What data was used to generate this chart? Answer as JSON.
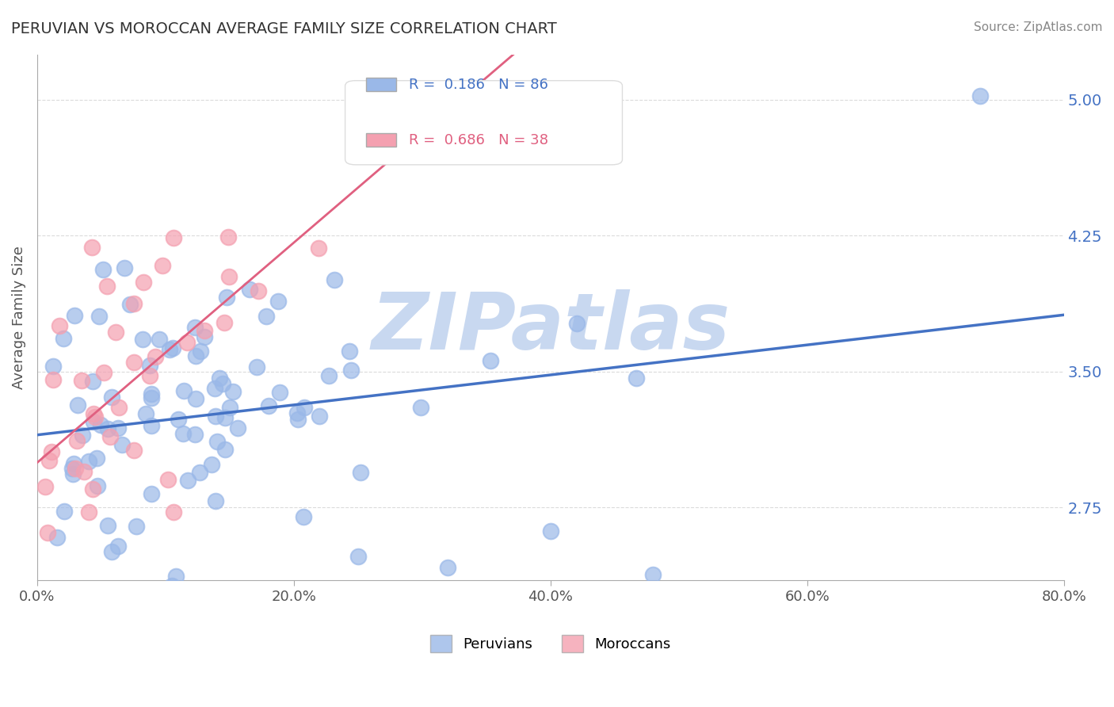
{
  "title": "PERUVIAN VS MOROCCAN AVERAGE FAMILY SIZE CORRELATION CHART",
  "source": "Source: ZipAtlas.com",
  "ylabel": "Average Family Size",
  "xlabel": "",
  "xlim": [
    0.0,
    0.8
  ],
  "ylim": [
    2.35,
    5.25
  ],
  "yticks": [
    2.75,
    3.5,
    4.25,
    5.0
  ],
  "xticks": [
    0.0,
    0.2,
    0.4,
    0.6,
    0.8
  ],
  "xtick_labels": [
    "0.0%",
    "20.0%",
    "40.0%",
    "60.0%",
    "80.0%"
  ],
  "peruvian_color": "#9ab8e8",
  "moroccan_color": "#f4a0b0",
  "peruvian_line_color": "#4472c4",
  "moroccan_line_color": "#e06080",
  "R_peruvian": 0.186,
  "N_peruvian": 86,
  "R_moroccan": 0.686,
  "N_moroccan": 38,
  "watermark": "ZIPatlas",
  "watermark_color": "#c8d8f0",
  "legend_label_peruvian": "Peruvians",
  "legend_label_moroccan": "Moroccans",
  "background_color": "#ffffff",
  "grid_color": "#cccccc",
  "title_color": "#333333",
  "axis_label_color": "#555555",
  "ytick_label_color": "#4472c4",
  "seed": 42
}
